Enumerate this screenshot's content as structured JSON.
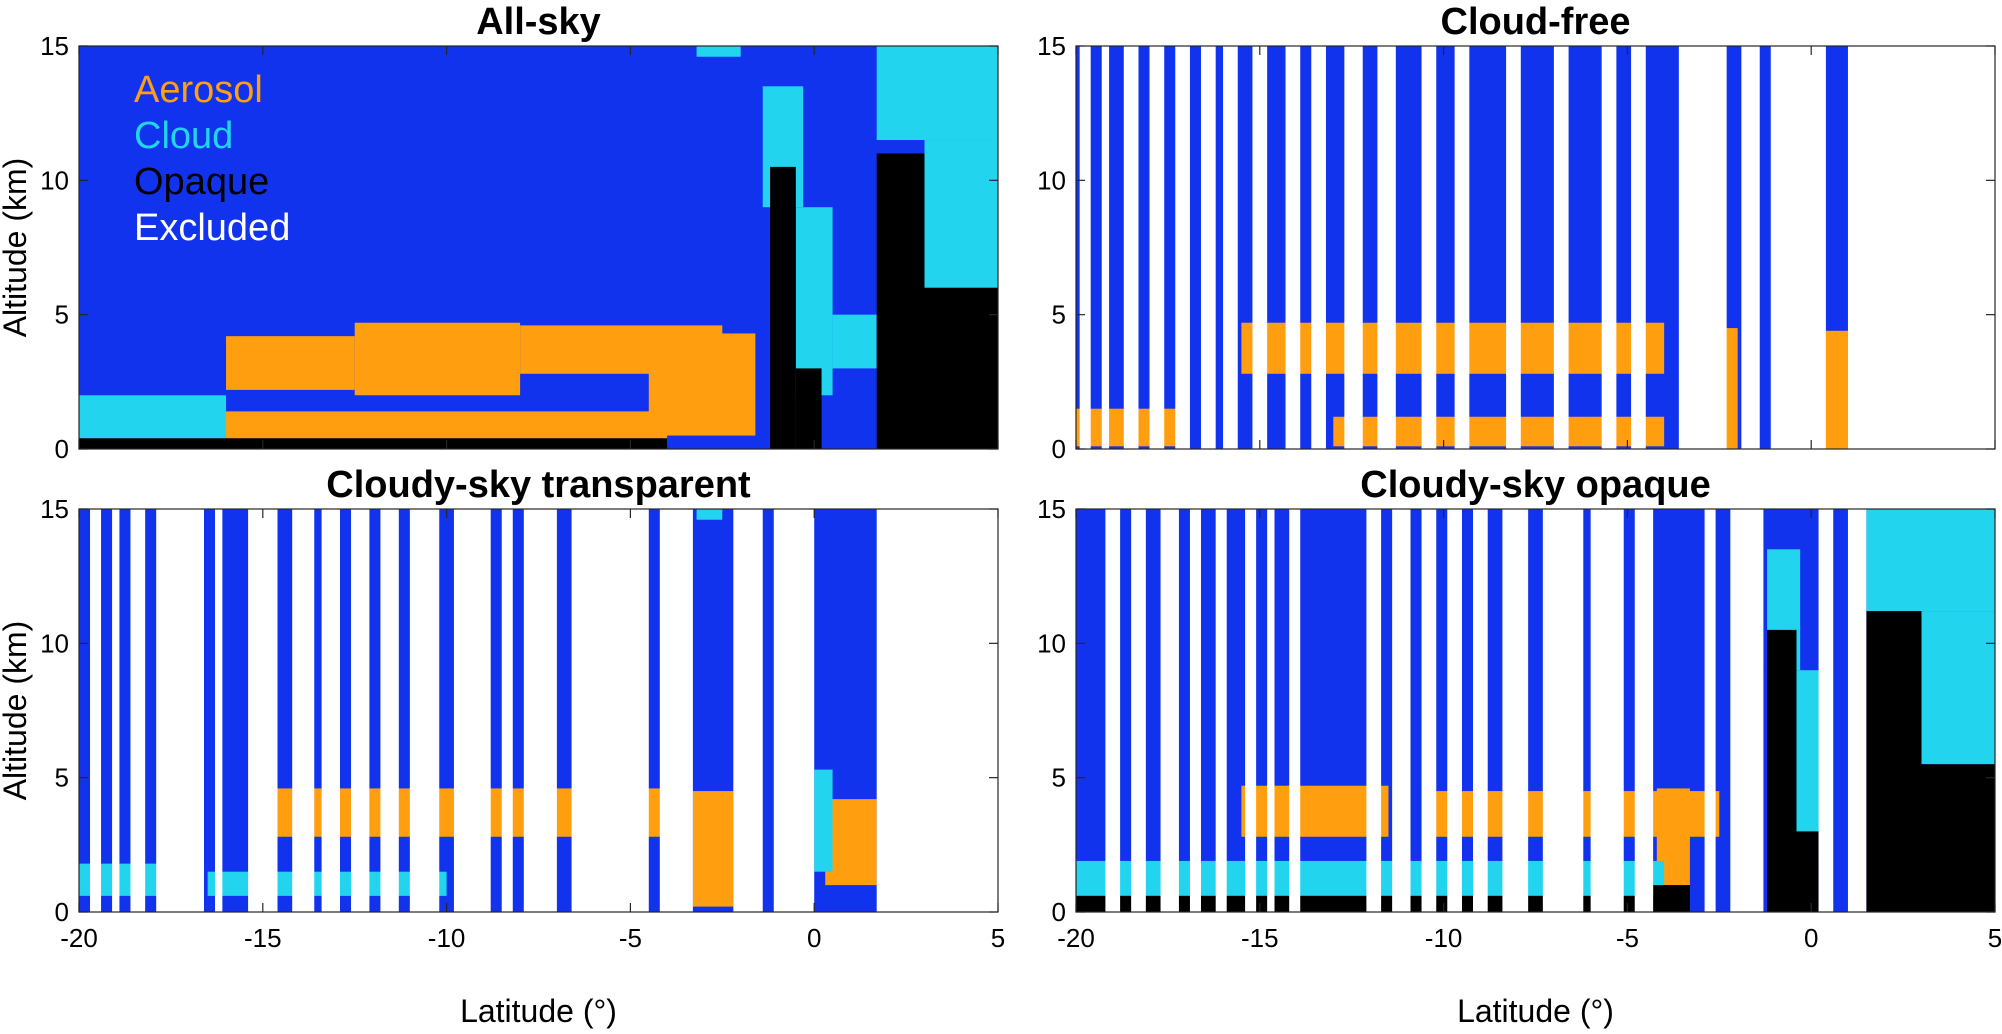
{
  "colors": {
    "clear": "#1133ee",
    "aerosol": "#ff9f10",
    "cloud": "#22d4ee",
    "opaque": "#000000",
    "excluded": "#ffffff"
  },
  "legend": [
    {
      "key": "aerosol",
      "label": "Aerosol",
      "color": "#ff9f10"
    },
    {
      "key": "cloud",
      "label": "Cloud",
      "color": "#22d4ee"
    },
    {
      "key": "opaque",
      "label": "Opaque",
      "color": "#000000"
    },
    {
      "key": "excluded",
      "label": "Excluded",
      "color": "#ffffff"
    }
  ],
  "chart_data": [
    {
      "type": "heatmap",
      "title": "All-sky",
      "xlabel": "",
      "ylabel": "Altitude (km)",
      "xlim": [
        -20,
        5
      ],
      "ylim": [
        0,
        15
      ],
      "xticks": [
        "-20",
        "-15",
        "-10",
        "-5",
        "0",
        "5"
      ],
      "yticks": [
        "0",
        "5",
        "10",
        "15"
      ],
      "show_legend": true,
      "excluded_ranges": [],
      "features": [
        {
          "class": "aerosol",
          "x0": -16.0,
          "x1": -12.5,
          "y0": 2.2,
          "y1": 4.2
        },
        {
          "class": "aerosol",
          "x0": -12.5,
          "x1": -8.0,
          "y0": 2.0,
          "y1": 4.7
        },
        {
          "class": "aerosol",
          "x0": -8.0,
          "x1": -2.5,
          "y0": 2.8,
          "y1": 4.6
        },
        {
          "class": "aerosol",
          "x0": -4.5,
          "x1": -1.6,
          "y0": 0.5,
          "y1": 4.3
        },
        {
          "class": "aerosol",
          "x0": -20.0,
          "x1": -4.0,
          "y0": 0.1,
          "y1": 1.4
        },
        {
          "class": "cloud",
          "x0": -20.0,
          "x1": -16.0,
          "y0": 0.3,
          "y1": 2.0
        },
        {
          "class": "cloud",
          "x0": -1.4,
          "x1": -0.3,
          "y0": 9.0,
          "y1": 13.5
        },
        {
          "class": "cloud",
          "x0": -0.5,
          "x1": 0.5,
          "y0": 2.0,
          "y1": 9.0
        },
        {
          "class": "cloud",
          "x0": 1.7,
          "x1": 5.0,
          "y0": 11.5,
          "y1": 15.0
        },
        {
          "class": "cloud",
          "x0": 3.0,
          "x1": 5.0,
          "y0": 6.0,
          "y1": 11.5
        },
        {
          "class": "cloud",
          "x0": 0.5,
          "x1": 1.7,
          "y0": 3.0,
          "y1": 5.0
        },
        {
          "class": "opaque",
          "x0": -1.2,
          "x1": -0.5,
          "y0": 0.0,
          "y1": 10.5
        },
        {
          "class": "opaque",
          "x0": -0.5,
          "x1": 0.2,
          "y0": 0.0,
          "y1": 3.0
        },
        {
          "class": "opaque",
          "x0": 1.7,
          "x1": 3.0,
          "y0": 0.0,
          "y1": 11.0
        },
        {
          "class": "opaque",
          "x0": 3.0,
          "x1": 5.0,
          "y0": 0.0,
          "y1": 6.0
        },
        {
          "class": "opaque",
          "x0": -20.0,
          "x1": -4.0,
          "y0": 0.0,
          "y1": 0.4
        },
        {
          "class": "cloud",
          "x0": -3.2,
          "x1": -2.0,
          "y0": 14.6,
          "y1": 15.0
        }
      ]
    },
    {
      "type": "heatmap",
      "title": "Cloud-free",
      "xlabel": "",
      "ylabel": "",
      "xlim": [
        -20,
        5
      ],
      "ylim": [
        0,
        15
      ],
      "xticks": [
        "-20",
        "-15",
        "-10",
        "-5",
        "0",
        "5"
      ],
      "yticks": [
        "0",
        "5",
        "10",
        "15"
      ],
      "show_legend": false,
      "excluded_ranges": [
        [
          -19.9,
          -19.6
        ],
        [
          -19.3,
          -19.1
        ],
        [
          -18.7,
          -18.3
        ],
        [
          -18.0,
          -17.6
        ],
        [
          -17.3,
          -16.9
        ],
        [
          -16.6,
          -16.2
        ],
        [
          -16.0,
          -15.6
        ],
        [
          -15.2,
          -14.8
        ],
        [
          -14.3,
          -13.9
        ],
        [
          -13.6,
          -13.2
        ],
        [
          -12.7,
          -12.2
        ],
        [
          -11.8,
          -11.3
        ],
        [
          -10.6,
          -10.2
        ],
        [
          -9.7,
          -9.3
        ],
        [
          -8.3,
          -7.9
        ],
        [
          -7.0,
          -6.6
        ],
        [
          -5.7,
          -5.3
        ],
        [
          -4.9,
          -4.5
        ],
        [
          -3.6,
          -2.3
        ],
        [
          -1.9,
          -1.4
        ],
        [
          -1.1,
          0.4
        ],
        [
          1.0,
          5.0
        ]
      ],
      "features": [
        {
          "class": "aerosol",
          "x0": -15.5,
          "x1": -4.0,
          "y0": 2.8,
          "y1": 4.7
        },
        {
          "class": "aerosol",
          "x0": -13.0,
          "x1": -4.0,
          "y0": 0.1,
          "y1": 1.2
        },
        {
          "class": "aerosol",
          "x0": -20.0,
          "x1": -17.0,
          "y0": 0.1,
          "y1": 1.5
        },
        {
          "class": "aerosol",
          "x0": -3.2,
          "x1": -2.0,
          "y0": 0.0,
          "y1": 4.5
        },
        {
          "class": "aerosol",
          "x0": 0.4,
          "x1": 1.0,
          "y0": 0.0,
          "y1": 4.4
        }
      ]
    },
    {
      "type": "heatmap",
      "title": "Cloudy-sky transparent",
      "xlabel": "Latitude (°)",
      "ylabel": "Altitude (km)",
      "xlim": [
        -20,
        5
      ],
      "ylim": [
        0,
        15
      ],
      "xticks": [
        "-20",
        "-15",
        "-10",
        "-5",
        "0",
        "5"
      ],
      "yticks": [
        "0",
        "5",
        "10",
        "15"
      ],
      "show_legend": false,
      "excluded_ranges": [
        [
          -19.7,
          -19.4
        ],
        [
          -19.1,
          -18.9
        ],
        [
          -18.6,
          -18.2
        ],
        [
          -17.9,
          -16.6
        ],
        [
          -16.3,
          -16.1
        ],
        [
          -15.4,
          -14.6
        ],
        [
          -14.2,
          -13.6
        ],
        [
          -13.4,
          -12.9
        ],
        [
          -12.6,
          -12.1
        ],
        [
          -11.8,
          -11.3
        ],
        [
          -11.0,
          -10.2
        ],
        [
          -9.8,
          -8.8
        ],
        [
          -8.5,
          -8.2
        ],
        [
          -7.9,
          -7.0
        ],
        [
          -6.6,
          -4.5
        ],
        [
          -4.2,
          -3.3
        ],
        [
          -2.2,
          -1.4
        ],
        [
          -1.1,
          0.0
        ],
        [
          1.7,
          5.0
        ]
      ],
      "features": [
        {
          "class": "aerosol",
          "x0": -15.0,
          "x1": -4.0,
          "y0": 2.8,
          "y1": 4.6
        },
        {
          "class": "aerosol",
          "x0": -3.3,
          "x1": -2.2,
          "y0": 0.2,
          "y1": 4.5
        },
        {
          "class": "aerosol",
          "x0": 0.3,
          "x1": 1.7,
          "y0": 1.0,
          "y1": 4.2
        },
        {
          "class": "cloud",
          "x0": -20.0,
          "x1": -17.8,
          "y0": 0.6,
          "y1": 1.8
        },
        {
          "class": "cloud",
          "x0": -16.5,
          "x1": -10.0,
          "y0": 0.6,
          "y1": 1.5
        },
        {
          "class": "cloud",
          "x0": 0.0,
          "x1": 0.5,
          "y0": 1.5,
          "y1": 5.3
        },
        {
          "class": "cloud",
          "x0": -3.2,
          "x1": -2.5,
          "y0": 14.6,
          "y1": 15.0
        }
      ]
    },
    {
      "type": "heatmap",
      "title": "Cloudy-sky opaque",
      "xlabel": "Latitude (°)",
      "ylabel": "",
      "xlim": [
        -20,
        5
      ],
      "ylim": [
        0,
        15
      ],
      "xticks": [
        "-20",
        "-15",
        "-10",
        "-5",
        "0",
        "5"
      ],
      "yticks": [
        "0",
        "5",
        "10",
        "15"
      ],
      "show_legend": false,
      "excluded_ranges": [
        [
          -19.2,
          -18.8
        ],
        [
          -18.5,
          -18.1
        ],
        [
          -17.7,
          -17.2
        ],
        [
          -16.9,
          -16.6
        ],
        [
          -16.2,
          -15.9
        ],
        [
          -15.4,
          -15.1
        ],
        [
          -14.8,
          -14.6
        ],
        [
          -14.2,
          -13.9
        ],
        [
          -12.1,
          -11.7
        ],
        [
          -11.4,
          -10.9
        ],
        [
          -10.6,
          -10.2
        ],
        [
          -9.9,
          -9.5
        ],
        [
          -9.2,
          -8.8
        ],
        [
          -8.4,
          -7.7
        ],
        [
          -7.3,
          -6.2
        ],
        [
          -6.0,
          -5.1
        ],
        [
          -4.8,
          -4.3
        ],
        [
          -2.9,
          -2.6
        ],
        [
          -2.2,
          -1.3
        ],
        [
          0.2,
          0.6
        ],
        [
          1.0,
          1.5
        ]
      ],
      "features": [
        {
          "class": "aerosol",
          "x0": -15.5,
          "x1": -11.5,
          "y0": 2.8,
          "y1": 4.7
        },
        {
          "class": "aerosol",
          "x0": -10.3,
          "x1": -2.5,
          "y0": 2.8,
          "y1": 4.5
        },
        {
          "class": "aerosol",
          "x0": -4.2,
          "x1": -3.3,
          "y0": 1.0,
          "y1": 4.6
        },
        {
          "class": "cloud",
          "x0": -20.0,
          "x1": -4.0,
          "y0": 0.6,
          "y1": 1.9
        },
        {
          "class": "cloud",
          "x0": -1.2,
          "x1": -0.3,
          "y0": 9.0,
          "y1": 13.5
        },
        {
          "class": "cloud",
          "x0": -0.5,
          "x1": 0.2,
          "y0": 2.0,
          "y1": 9.0
        },
        {
          "class": "cloud",
          "x0": 1.5,
          "x1": 5.0,
          "y0": 11.2,
          "y1": 15.0
        },
        {
          "class": "cloud",
          "x0": 3.0,
          "x1": 5.0,
          "y0": 5.5,
          "y1": 11.2
        },
        {
          "class": "opaque",
          "x0": -1.2,
          "x1": -0.4,
          "y0": 0.0,
          "y1": 10.5
        },
        {
          "class": "opaque",
          "x0": -0.4,
          "x1": 0.2,
          "y0": 0.0,
          "y1": 3.0
        },
        {
          "class": "opaque",
          "x0": 1.5,
          "x1": 3.0,
          "y0": 0.0,
          "y1": 11.2
        },
        {
          "class": "opaque",
          "x0": 3.0,
          "x1": 5.0,
          "y0": 0.0,
          "y1": 5.5
        },
        {
          "class": "opaque",
          "x0": -20.0,
          "x1": -4.0,
          "y0": 0.0,
          "y1": 0.6
        },
        {
          "class": "opaque",
          "x0": -4.3,
          "x1": -3.3,
          "y0": 0.0,
          "y1": 1.0
        }
      ]
    }
  ]
}
